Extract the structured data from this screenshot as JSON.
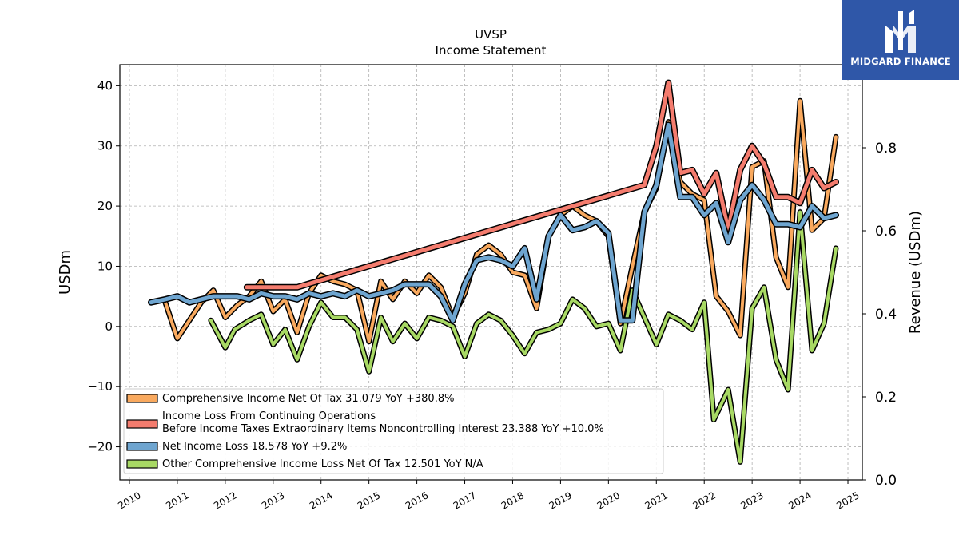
{
  "brand": {
    "name": "MIDGARD FINANCE",
    "color": "#2f57a8"
  },
  "chart_data": {
    "type": "line",
    "title": "UVSP",
    "subtitle": "Income Statement",
    "ylabel": "USDm",
    "y2label": "Revenue (USDm)",
    "ylim": [
      -25.5,
      43.5
    ],
    "y2lim": [
      0,
      1.0
    ],
    "xlim": [
      2009.8,
      2025.3
    ],
    "x_ticks": [
      "2010",
      "2011",
      "2012",
      "2013",
      "2014",
      "2015",
      "2016",
      "2017",
      "2018",
      "2019",
      "2020",
      "2021",
      "2022",
      "2023",
      "2024",
      "2025"
    ],
    "y_ticks": [
      "−20",
      "−10",
      "0",
      "10",
      "20",
      "30",
      "40"
    ],
    "y2_ticks": [
      "0.0",
      "0.2",
      "0.4",
      "0.6",
      "0.8"
    ],
    "grid": true,
    "legend_position": "lower-left",
    "series": [
      {
        "name": "Comprehensive Income Net Of Tax  31.079 YoY +380.8%",
        "color": "#f9a95e",
        "width": 4,
        "points": [
          [
            2010.75,
            4.0
          ],
          [
            2011.0,
            -2.0
          ],
          [
            2011.25,
            1.0
          ],
          [
            2011.5,
            4.0
          ],
          [
            2011.75,
            6.0
          ],
          [
            2012.0,
            1.5
          ],
          [
            2012.25,
            3.5
          ],
          [
            2012.5,
            5.0
          ],
          [
            2012.75,
            7.5
          ],
          [
            2013.0,
            2.5
          ],
          [
            2013.25,
            4.5
          ],
          [
            2013.5,
            -1.0
          ],
          [
            2013.75,
            5.5
          ],
          [
            2014.0,
            8.5
          ],
          [
            2014.25,
            7.5
          ],
          [
            2014.5,
            7.0
          ],
          [
            2014.75,
            6.0
          ],
          [
            2015.0,
            -2.5
          ],
          [
            2015.25,
            7.5
          ],
          [
            2015.5,
            4.5
          ],
          [
            2015.75,
            7.5
          ],
          [
            2016.0,
            5.5
          ],
          [
            2016.25,
            8.5
          ],
          [
            2016.5,
            6.5
          ],
          [
            2016.75,
            1.5
          ],
          [
            2017.0,
            5.5
          ],
          [
            2017.25,
            12.0
          ],
          [
            2017.5,
            13.5
          ],
          [
            2017.75,
            12.0
          ],
          [
            2018.0,
            9.0
          ],
          [
            2018.25,
            8.5
          ],
          [
            2018.5,
            3.0
          ],
          [
            2018.75,
            15.0
          ],
          [
            2019.0,
            18.5
          ],
          [
            2019.25,
            20.0
          ],
          [
            2019.5,
            18.5
          ],
          [
            2019.75,
            17.5
          ],
          [
            2020.0,
            15.0
          ],
          [
            2020.25,
            0.5
          ],
          [
            2020.5,
            10.0
          ],
          [
            2020.75,
            19.0
          ],
          [
            2021.0,
            23.0
          ],
          [
            2021.25,
            34.0
          ],
          [
            2021.5,
            24.0
          ],
          [
            2021.75,
            22.0
          ],
          [
            2022.0,
            21.0
          ],
          [
            2022.25,
            5.0
          ],
          [
            2022.5,
            2.5
          ],
          [
            2022.75,
            -1.5
          ],
          [
            2023.0,
            26.5
          ],
          [
            2023.25,
            27.5
          ],
          [
            2023.5,
            11.5
          ],
          [
            2023.75,
            6.5
          ],
          [
            2024.0,
            37.5
          ],
          [
            2024.25,
            16.0
          ],
          [
            2024.5,
            18.0
          ],
          [
            2024.75,
            31.5
          ]
        ]
      },
      {
        "name": "Other Comprehensive Income Loss Net Of Tax  12.501 YoY N/A",
        "color": "#a8d964",
        "width": 4,
        "points": [
          [
            2011.7,
            1.0
          ],
          [
            2012.0,
            -3.5
          ],
          [
            2012.2,
            -0.5
          ],
          [
            2012.5,
            1.0
          ],
          [
            2012.75,
            2.0
          ],
          [
            2013.0,
            -3.0
          ],
          [
            2013.25,
            -0.5
          ],
          [
            2013.5,
            -5.5
          ],
          [
            2013.75,
            0.0
          ],
          [
            2014.0,
            4.0
          ],
          [
            2014.25,
            1.5
          ],
          [
            2014.5,
            1.5
          ],
          [
            2014.75,
            -0.5
          ],
          [
            2015.0,
            -7.5
          ],
          [
            2015.25,
            1.5
          ],
          [
            2015.5,
            -2.5
          ],
          [
            2015.75,
            0.5
          ],
          [
            2016.0,
            -2.0
          ],
          [
            2016.25,
            1.5
          ],
          [
            2016.5,
            1.0
          ],
          [
            2016.75,
            0.0
          ],
          [
            2017.0,
            -5.0
          ],
          [
            2017.25,
            0.5
          ],
          [
            2017.5,
            2.0
          ],
          [
            2017.75,
            1.0
          ],
          [
            2018.0,
            -1.5
          ],
          [
            2018.25,
            -4.5
          ],
          [
            2018.5,
            -1.0
          ],
          [
            2018.75,
            -0.5
          ],
          [
            2019.0,
            0.5
          ],
          [
            2019.25,
            4.5
          ],
          [
            2019.5,
            3.0
          ],
          [
            2019.75,
            0.0
          ],
          [
            2020.0,
            0.5
          ],
          [
            2020.25,
            -4.0
          ],
          [
            2020.5,
            6.0
          ],
          [
            2020.75,
            1.5
          ],
          [
            2021.0,
            -3.0
          ],
          [
            2021.25,
            2.0
          ],
          [
            2021.5,
            1.0
          ],
          [
            2021.75,
            -0.5
          ],
          [
            2022.0,
            4.0
          ],
          [
            2022.2,
            -15.5
          ],
          [
            2022.5,
            -10.5
          ],
          [
            2022.75,
            -22.5
          ],
          [
            2023.0,
            3.0
          ],
          [
            2023.25,
            6.5
          ],
          [
            2023.5,
            -5.5
          ],
          [
            2023.75,
            -10.5
          ],
          [
            2024.0,
            19.0
          ],
          [
            2024.25,
            -4.0
          ],
          [
            2024.5,
            0.5
          ],
          [
            2024.75,
            13.0
          ]
        ]
      },
      {
        "name": "Income Loss From Continuing Operations\nBefore Income Taxes Extraordinary Items Noncontrolling Interest  23.388 YoY +10.0%",
        "color": "#f47c6e",
        "width": 5,
        "points": [
          [
            2012.45,
            6.5
          ],
          [
            2013.5,
            6.5
          ],
          [
            2020.75,
            23.5
          ],
          [
            2021.0,
            30.0
          ],
          [
            2021.25,
            40.5
          ],
          [
            2021.5,
            25.5
          ],
          [
            2021.75,
            26.0
          ],
          [
            2022.0,
            22.0
          ],
          [
            2022.25,
            25.5
          ],
          [
            2022.5,
            16.0
          ],
          [
            2022.75,
            26.0
          ],
          [
            2023.0,
            30.0
          ],
          [
            2023.25,
            27.0
          ],
          [
            2023.5,
            21.5
          ],
          [
            2023.75,
            21.5
          ],
          [
            2024.0,
            20.5
          ],
          [
            2024.25,
            26.0
          ],
          [
            2024.5,
            23.0
          ],
          [
            2024.75,
            24.0
          ]
        ]
      },
      {
        "name": "Net Income Loss  18.578 YoY +9.2%",
        "color": "#6ea5d0",
        "width": 5,
        "points": [
          [
            2010.45,
            4.0
          ],
          [
            2010.75,
            4.5
          ],
          [
            2011.0,
            5.0
          ],
          [
            2011.25,
            4.0
          ],
          [
            2011.5,
            4.5
          ],
          [
            2011.75,
            5.0
          ],
          [
            2012.0,
            5.0
          ],
          [
            2012.25,
            5.0
          ],
          [
            2012.5,
            4.5
          ],
          [
            2012.75,
            5.5
          ],
          [
            2013.0,
            5.0
          ],
          [
            2013.25,
            5.0
          ],
          [
            2013.5,
            4.5
          ],
          [
            2013.75,
            5.5
          ],
          [
            2014.0,
            5.0
          ],
          [
            2014.25,
            5.5
          ],
          [
            2014.5,
            5.0
          ],
          [
            2014.75,
            6.0
          ],
          [
            2015.0,
            5.0
          ],
          [
            2015.25,
            5.5
          ],
          [
            2015.5,
            6.0
          ],
          [
            2015.75,
            7.0
          ],
          [
            2016.0,
            7.0
          ],
          [
            2016.25,
            7.0
          ],
          [
            2016.5,
            5.0
          ],
          [
            2016.75,
            1.0
          ],
          [
            2017.0,
            7.0
          ],
          [
            2017.25,
            11.0
          ],
          [
            2017.5,
            11.5
          ],
          [
            2017.75,
            11.0
          ],
          [
            2018.0,
            10.0
          ],
          [
            2018.25,
            13.0
          ],
          [
            2018.5,
            4.5
          ],
          [
            2018.75,
            15.0
          ],
          [
            2019.0,
            18.5
          ],
          [
            2019.25,
            16.0
          ],
          [
            2019.5,
            16.5
          ],
          [
            2019.75,
            17.5
          ],
          [
            2020.0,
            15.5
          ],
          [
            2020.25,
            1.0
          ],
          [
            2020.5,
            1.0
          ],
          [
            2020.75,
            19.0
          ],
          [
            2021.0,
            23.5
          ],
          [
            2021.25,
            33.5
          ],
          [
            2021.5,
            21.5
          ],
          [
            2021.75,
            21.5
          ],
          [
            2022.0,
            18.5
          ],
          [
            2022.25,
            20.5
          ],
          [
            2022.5,
            14.0
          ],
          [
            2022.75,
            21.0
          ],
          [
            2023.0,
            23.5
          ],
          [
            2023.25,
            21.0
          ],
          [
            2023.5,
            17.0
          ],
          [
            2023.75,
            17.0
          ],
          [
            2024.0,
            16.5
          ],
          [
            2024.25,
            20.0
          ],
          [
            2024.5,
            18.0
          ],
          [
            2024.75,
            18.5
          ]
        ]
      }
    ],
    "legend_order": [
      0,
      2,
      3,
      1
    ]
  }
}
